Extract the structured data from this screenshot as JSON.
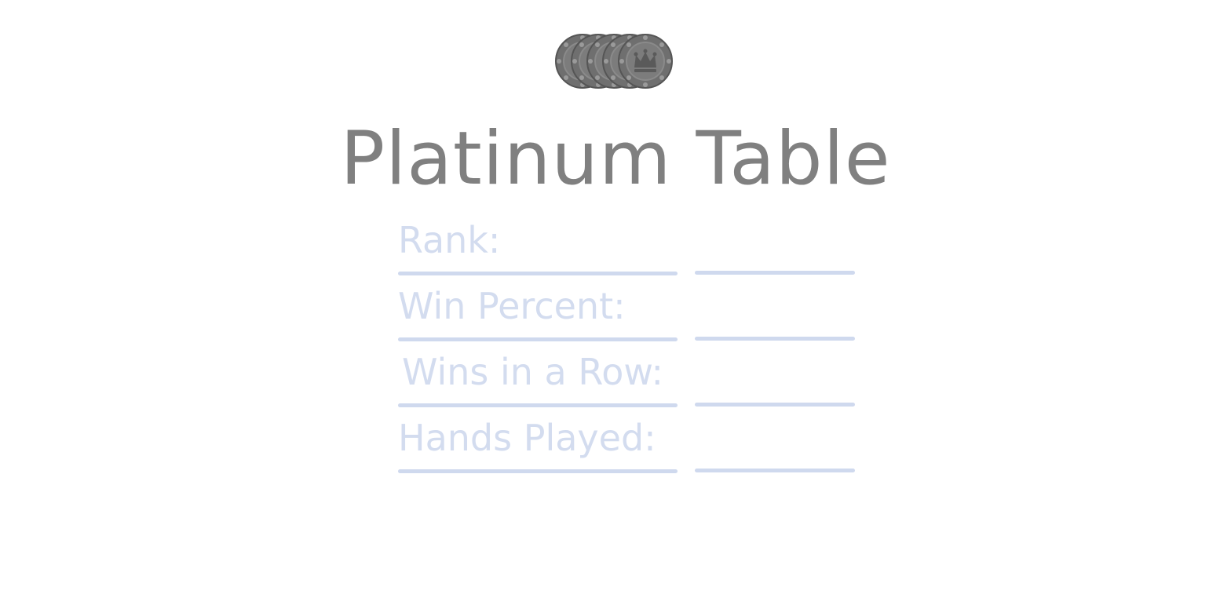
{
  "header": {
    "icon": "poker-chip-stack-icon",
    "chip_count": 5,
    "chip_color": "#6f6f6f",
    "chip_emblem": "crown-icon"
  },
  "title": "Platinum Table",
  "stats": [
    {
      "label": "Rank:",
      "value": ""
    },
    {
      "label": "Win Percent:",
      "value": ""
    },
    {
      "label": "Wins in a Row:",
      "value": ""
    },
    {
      "label": "Hands Played:",
      "value": ""
    }
  ],
  "colors": {
    "title": "#808080",
    "stat_text": "#d3dcef",
    "underline": "#cfd9ee",
    "background": "#ffffff"
  }
}
